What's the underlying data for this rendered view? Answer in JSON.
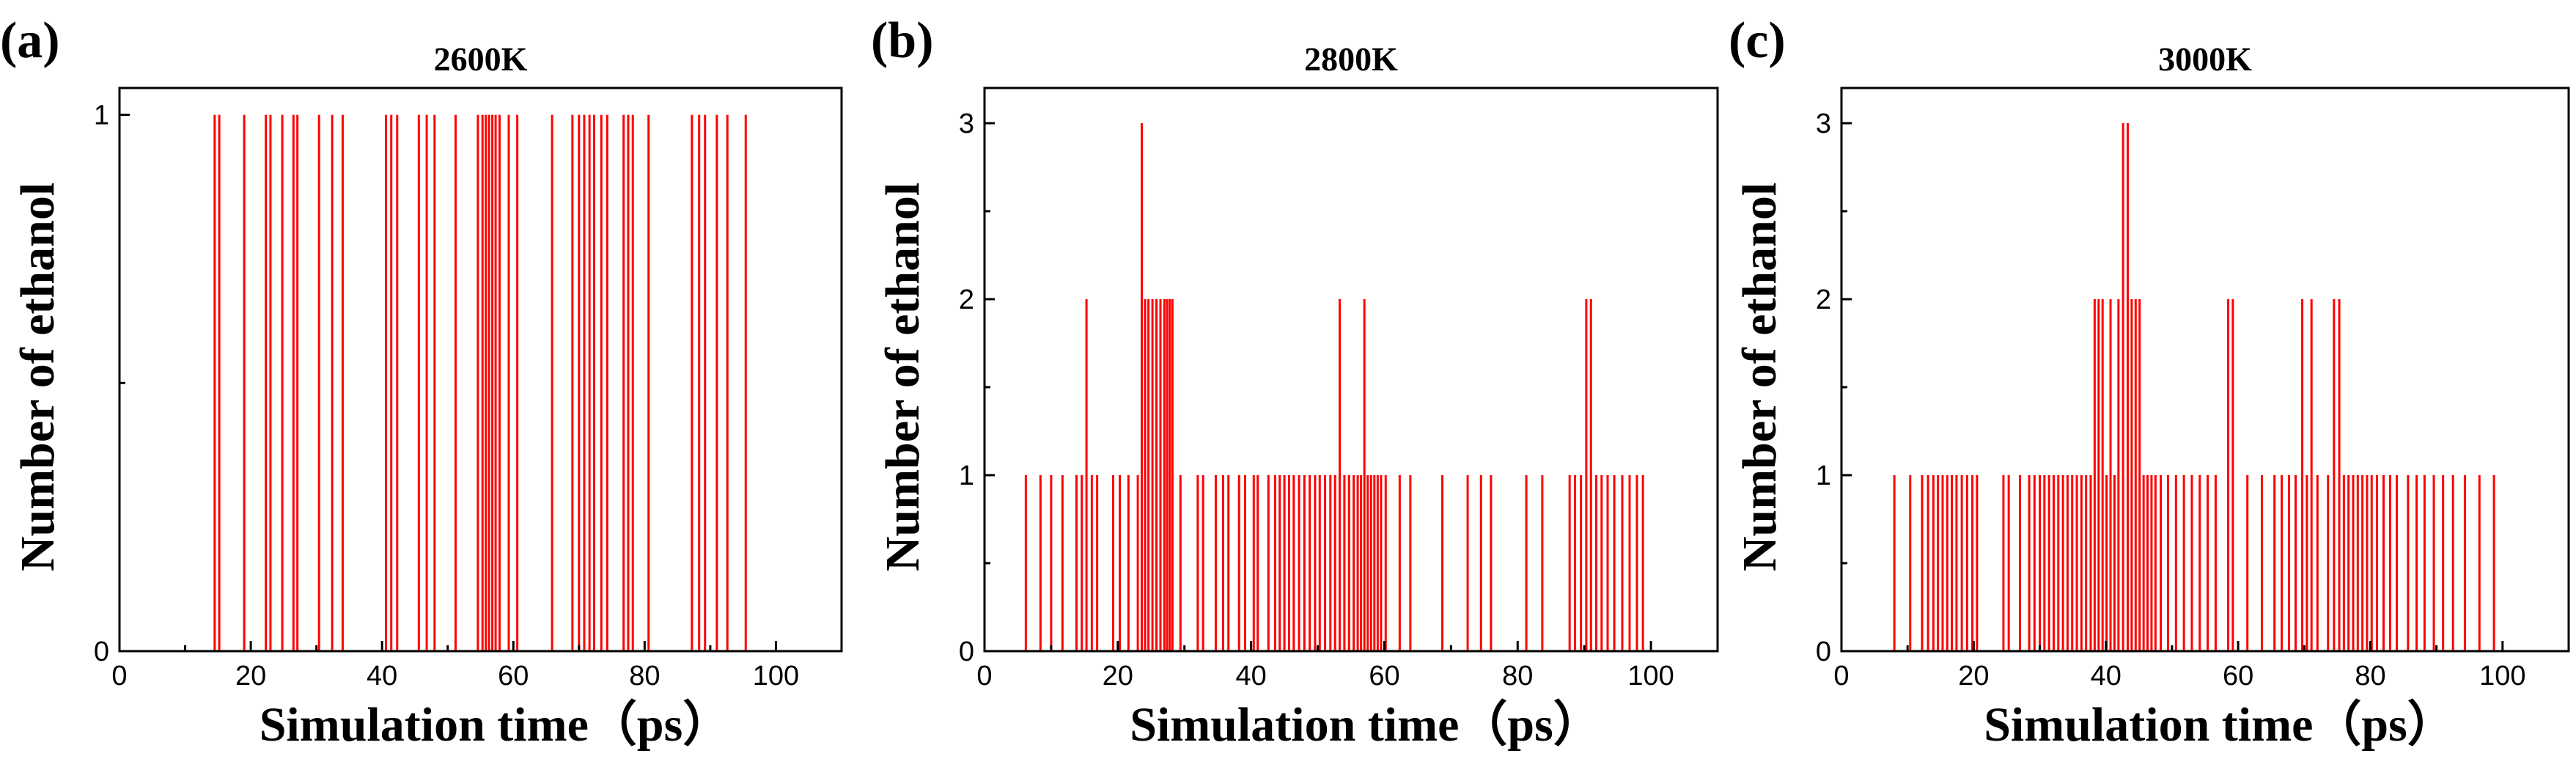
{
  "chart_data": [
    {
      "type": "bar",
      "panel_label": "(a)",
      "title": "2600K",
      "xlabel": "Simulation time（ps）",
      "ylabel": "Number of ethanol",
      "xlim": [
        0,
        110
      ],
      "ylim": [
        0,
        1.05
      ],
      "xticks": [
        0,
        20,
        40,
        60,
        80,
        100
      ],
      "yticks": [
        0,
        1
      ],
      "xtick_labels": [
        "0",
        "20",
        "40",
        "60",
        "80",
        "100"
      ],
      "ytick_labels": [
        "0",
        "1"
      ],
      "color": "#ff0000",
      "events": [
        {
          "t": 14.5,
          "v": 1
        },
        {
          "t": 15.2,
          "v": 1
        },
        {
          "t": 19.0,
          "v": 1
        },
        {
          "t": 22.3,
          "v": 1
        },
        {
          "t": 23.0,
          "v": 1
        },
        {
          "t": 24.8,
          "v": 1
        },
        {
          "t": 26.5,
          "v": 1
        },
        {
          "t": 27.1,
          "v": 1
        },
        {
          "t": 30.4,
          "v": 1
        },
        {
          "t": 32.4,
          "v": 1
        },
        {
          "t": 34.0,
          "v": 1
        },
        {
          "t": 40.6,
          "v": 1
        },
        {
          "t": 41.4,
          "v": 1
        },
        {
          "t": 42.3,
          "v": 1
        },
        {
          "t": 45.6,
          "v": 1
        },
        {
          "t": 46.8,
          "v": 1
        },
        {
          "t": 48.0,
          "v": 1
        },
        {
          "t": 51.2,
          "v": 1
        },
        {
          "t": 54.6,
          "v": 1
        },
        {
          "t": 55.3,
          "v": 1
        },
        {
          "t": 55.8,
          "v": 1
        },
        {
          "t": 56.3,
          "v": 1
        },
        {
          "t": 56.8,
          "v": 1
        },
        {
          "t": 57.3,
          "v": 1
        },
        {
          "t": 57.9,
          "v": 1
        },
        {
          "t": 59.3,
          "v": 1
        },
        {
          "t": 60.6,
          "v": 1
        },
        {
          "t": 65.9,
          "v": 1
        },
        {
          "t": 69.0,
          "v": 1
        },
        {
          "t": 70.0,
          "v": 1
        },
        {
          "t": 70.8,
          "v": 1
        },
        {
          "t": 71.6,
          "v": 1
        },
        {
          "t": 72.3,
          "v": 1
        },
        {
          "t": 73.4,
          "v": 1
        },
        {
          "t": 74.3,
          "v": 1
        },
        {
          "t": 76.8,
          "v": 1
        },
        {
          "t": 77.5,
          "v": 1
        },
        {
          "t": 78.2,
          "v": 1
        },
        {
          "t": 80.6,
          "v": 1
        },
        {
          "t": 87.2,
          "v": 1
        },
        {
          "t": 88.3,
          "v": 1
        },
        {
          "t": 89.2,
          "v": 1
        },
        {
          "t": 91.0,
          "v": 1
        },
        {
          "t": 92.6,
          "v": 1
        },
        {
          "t": 95.4,
          "v": 1
        }
      ]
    },
    {
      "type": "bar",
      "panel_label": "(b)",
      "title": "2800K",
      "xlabel": "Simulation time（ps）",
      "ylabel": "Number of ethanol",
      "xlim": [
        0,
        110
      ],
      "ylim": [
        0,
        3.2
      ],
      "xticks": [
        0,
        20,
        40,
        60,
        80,
        100
      ],
      "yticks": [
        0,
        1,
        2,
        3
      ],
      "xtick_labels": [
        "0",
        "20",
        "40",
        "60",
        "80",
        "100"
      ],
      "ytick_labels": [
        "0",
        "1",
        "2",
        "3"
      ],
      "color": "#ff0000",
      "events": [
        {
          "t": 6.2,
          "v": 1
        },
        {
          "t": 8.4,
          "v": 1
        },
        {
          "t": 10.0,
          "v": 1
        },
        {
          "t": 11.7,
          "v": 1
        },
        {
          "t": 13.8,
          "v": 1
        },
        {
          "t": 14.6,
          "v": 1
        },
        {
          "t": 15.3,
          "v": 2
        },
        {
          "t": 16.1,
          "v": 1
        },
        {
          "t": 16.9,
          "v": 1
        },
        {
          "t": 19.3,
          "v": 1
        },
        {
          "t": 20.3,
          "v": 1
        },
        {
          "t": 21.6,
          "v": 1
        },
        {
          "t": 23.0,
          "v": 1
        },
        {
          "t": 23.6,
          "v": 3
        },
        {
          "t": 24.1,
          "v": 2
        },
        {
          "t": 24.6,
          "v": 2
        },
        {
          "t": 25.2,
          "v": 2
        },
        {
          "t": 25.8,
          "v": 2
        },
        {
          "t": 26.4,
          "v": 2
        },
        {
          "t": 27.0,
          "v": 2
        },
        {
          "t": 27.4,
          "v": 2
        },
        {
          "t": 27.8,
          "v": 2
        },
        {
          "t": 28.2,
          "v": 2
        },
        {
          "t": 29.4,
          "v": 1
        },
        {
          "t": 32.0,
          "v": 1
        },
        {
          "t": 32.8,
          "v": 1
        },
        {
          "t": 34.7,
          "v": 1
        },
        {
          "t": 35.8,
          "v": 1
        },
        {
          "t": 36.6,
          "v": 1
        },
        {
          "t": 38.2,
          "v": 1
        },
        {
          "t": 39.1,
          "v": 1
        },
        {
          "t": 40.4,
          "v": 1
        },
        {
          "t": 41.0,
          "v": 1
        },
        {
          "t": 42.6,
          "v": 1
        },
        {
          "t": 43.6,
          "v": 1
        },
        {
          "t": 44.3,
          "v": 1
        },
        {
          "t": 45.0,
          "v": 1
        },
        {
          "t": 45.7,
          "v": 1
        },
        {
          "t": 46.4,
          "v": 1
        },
        {
          "t": 47.2,
          "v": 1
        },
        {
          "t": 48.0,
          "v": 1
        },
        {
          "t": 48.8,
          "v": 1
        },
        {
          "t": 49.6,
          "v": 1
        },
        {
          "t": 50.3,
          "v": 1
        },
        {
          "t": 51.1,
          "v": 1
        },
        {
          "t": 51.9,
          "v": 1
        },
        {
          "t": 52.6,
          "v": 1
        },
        {
          "t": 53.3,
          "v": 2
        },
        {
          "t": 54.0,
          "v": 1
        },
        {
          "t": 54.7,
          "v": 1
        },
        {
          "t": 55.4,
          "v": 1
        },
        {
          "t": 56.0,
          "v": 1
        },
        {
          "t": 56.5,
          "v": 1
        },
        {
          "t": 57.0,
          "v": 2
        },
        {
          "t": 57.5,
          "v": 1
        },
        {
          "t": 58.0,
          "v": 1
        },
        {
          "t": 58.5,
          "v": 1
        },
        {
          "t": 59.0,
          "v": 1
        },
        {
          "t": 59.5,
          "v": 1
        },
        {
          "t": 60.2,
          "v": 1
        },
        {
          "t": 62.3,
          "v": 1
        },
        {
          "t": 63.9,
          "v": 1
        },
        {
          "t": 68.7,
          "v": 1
        },
        {
          "t": 72.5,
          "v": 1
        },
        {
          "t": 74.5,
          "v": 1
        },
        {
          "t": 76.0,
          "v": 1
        },
        {
          "t": 81.3,
          "v": 1
        },
        {
          "t": 83.7,
          "v": 1
        },
        {
          "t": 87.8,
          "v": 1
        },
        {
          "t": 88.6,
          "v": 1
        },
        {
          "t": 89.5,
          "v": 1
        },
        {
          "t": 90.3,
          "v": 2
        },
        {
          "t": 91.0,
          "v": 2
        },
        {
          "t": 91.8,
          "v": 1
        },
        {
          "t": 92.6,
          "v": 1
        },
        {
          "t": 93.5,
          "v": 1
        },
        {
          "t": 94.5,
          "v": 1
        },
        {
          "t": 95.7,
          "v": 1
        },
        {
          "t": 96.8,
          "v": 1
        },
        {
          "t": 97.9,
          "v": 1
        },
        {
          "t": 98.8,
          "v": 1
        }
      ]
    },
    {
      "type": "bar",
      "panel_label": "(c)",
      "title": "3000K",
      "xlabel": "Simulation time（ps）",
      "ylabel": "Number of ethanol",
      "xlim": [
        0,
        110
      ],
      "ylim": [
        0,
        3.2
      ],
      "xticks": [
        0,
        20,
        40,
        60,
        80,
        100
      ],
      "yticks": [
        0,
        1,
        2,
        3
      ],
      "xtick_labels": [
        "0",
        "20",
        "40",
        "60",
        "80",
        "100"
      ],
      "ytick_labels": [
        "0",
        "1",
        "2",
        "3"
      ],
      "color": "#ff0000",
      "events": [
        {
          "t": 8.0,
          "v": 1
        },
        {
          "t": 10.4,
          "v": 1
        },
        {
          "t": 12.2,
          "v": 1
        },
        {
          "t": 13.1,
          "v": 1
        },
        {
          "t": 13.9,
          "v": 1
        },
        {
          "t": 14.6,
          "v": 1
        },
        {
          "t": 15.3,
          "v": 1
        },
        {
          "t": 16.0,
          "v": 1
        },
        {
          "t": 16.7,
          "v": 1
        },
        {
          "t": 17.4,
          "v": 1
        },
        {
          "t": 18.2,
          "v": 1
        },
        {
          "t": 19.0,
          "v": 1
        },
        {
          "t": 19.8,
          "v": 1
        },
        {
          "t": 20.5,
          "v": 1
        },
        {
          "t": 24.5,
          "v": 1
        },
        {
          "t": 25.3,
          "v": 1
        },
        {
          "t": 27.0,
          "v": 1
        },
        {
          "t": 28.4,
          "v": 1
        },
        {
          "t": 29.2,
          "v": 1
        },
        {
          "t": 30.0,
          "v": 1
        },
        {
          "t": 30.7,
          "v": 1
        },
        {
          "t": 31.4,
          "v": 1
        },
        {
          "t": 32.1,
          "v": 1
        },
        {
          "t": 32.8,
          "v": 1
        },
        {
          "t": 33.5,
          "v": 1
        },
        {
          "t": 34.2,
          "v": 1
        },
        {
          "t": 34.9,
          "v": 1
        },
        {
          "t": 35.6,
          "v": 1
        },
        {
          "t": 36.3,
          "v": 1
        },
        {
          "t": 37.0,
          "v": 1
        },
        {
          "t": 37.7,
          "v": 1
        },
        {
          "t": 38.3,
          "v": 2
        },
        {
          "t": 38.9,
          "v": 2
        },
        {
          "t": 39.5,
          "v": 2
        },
        {
          "t": 40.1,
          "v": 1
        },
        {
          "t": 40.7,
          "v": 2
        },
        {
          "t": 41.3,
          "v": 1
        },
        {
          "t": 41.9,
          "v": 2
        },
        {
          "t": 42.6,
          "v": 3
        },
        {
          "t": 43.3,
          "v": 3
        },
        {
          "t": 43.9,
          "v": 2
        },
        {
          "t": 44.5,
          "v": 2
        },
        {
          "t": 45.1,
          "v": 2
        },
        {
          "t": 45.7,
          "v": 1
        },
        {
          "t": 46.3,
          "v": 1
        },
        {
          "t": 46.9,
          "v": 1
        },
        {
          "t": 47.5,
          "v": 1
        },
        {
          "t": 48.3,
          "v": 1
        },
        {
          "t": 49.4,
          "v": 1
        },
        {
          "t": 50.6,
          "v": 1
        },
        {
          "t": 51.8,
          "v": 1
        },
        {
          "t": 53.0,
          "v": 1
        },
        {
          "t": 54.2,
          "v": 1
        },
        {
          "t": 55.4,
          "v": 1
        },
        {
          "t": 56.6,
          "v": 1
        },
        {
          "t": 58.5,
          "v": 2
        },
        {
          "t": 59.2,
          "v": 2
        },
        {
          "t": 61.4,
          "v": 1
        },
        {
          "t": 63.6,
          "v": 1
        },
        {
          "t": 65.5,
          "v": 1
        },
        {
          "t": 66.6,
          "v": 1
        },
        {
          "t": 67.7,
          "v": 1
        },
        {
          "t": 68.7,
          "v": 1
        },
        {
          "t": 69.7,
          "v": 2
        },
        {
          "t": 70.4,
          "v": 1
        },
        {
          "t": 71.1,
          "v": 2
        },
        {
          "t": 72.0,
          "v": 1
        },
        {
          "t": 73.6,
          "v": 1
        },
        {
          "t": 74.5,
          "v": 2
        },
        {
          "t": 75.3,
          "v": 2
        },
        {
          "t": 76.0,
          "v": 1
        },
        {
          "t": 76.7,
          "v": 1
        },
        {
          "t": 77.4,
          "v": 1
        },
        {
          "t": 78.1,
          "v": 1
        },
        {
          "t": 78.8,
          "v": 1
        },
        {
          "t": 79.5,
          "v": 1
        },
        {
          "t": 80.2,
          "v": 1
        },
        {
          "t": 81.0,
          "v": 1
        },
        {
          "t": 82.0,
          "v": 1
        },
        {
          "t": 83.0,
          "v": 1
        },
        {
          "t": 84.0,
          "v": 1
        },
        {
          "t": 85.7,
          "v": 1
        },
        {
          "t": 87.0,
          "v": 1
        },
        {
          "t": 88.2,
          "v": 1
        },
        {
          "t": 89.6,
          "v": 1
        },
        {
          "t": 91.0,
          "v": 1
        },
        {
          "t": 92.5,
          "v": 1
        },
        {
          "t": 94.3,
          "v": 1
        },
        {
          "t": 96.5,
          "v": 1
        },
        {
          "t": 98.7,
          "v": 1
        }
      ]
    }
  ]
}
